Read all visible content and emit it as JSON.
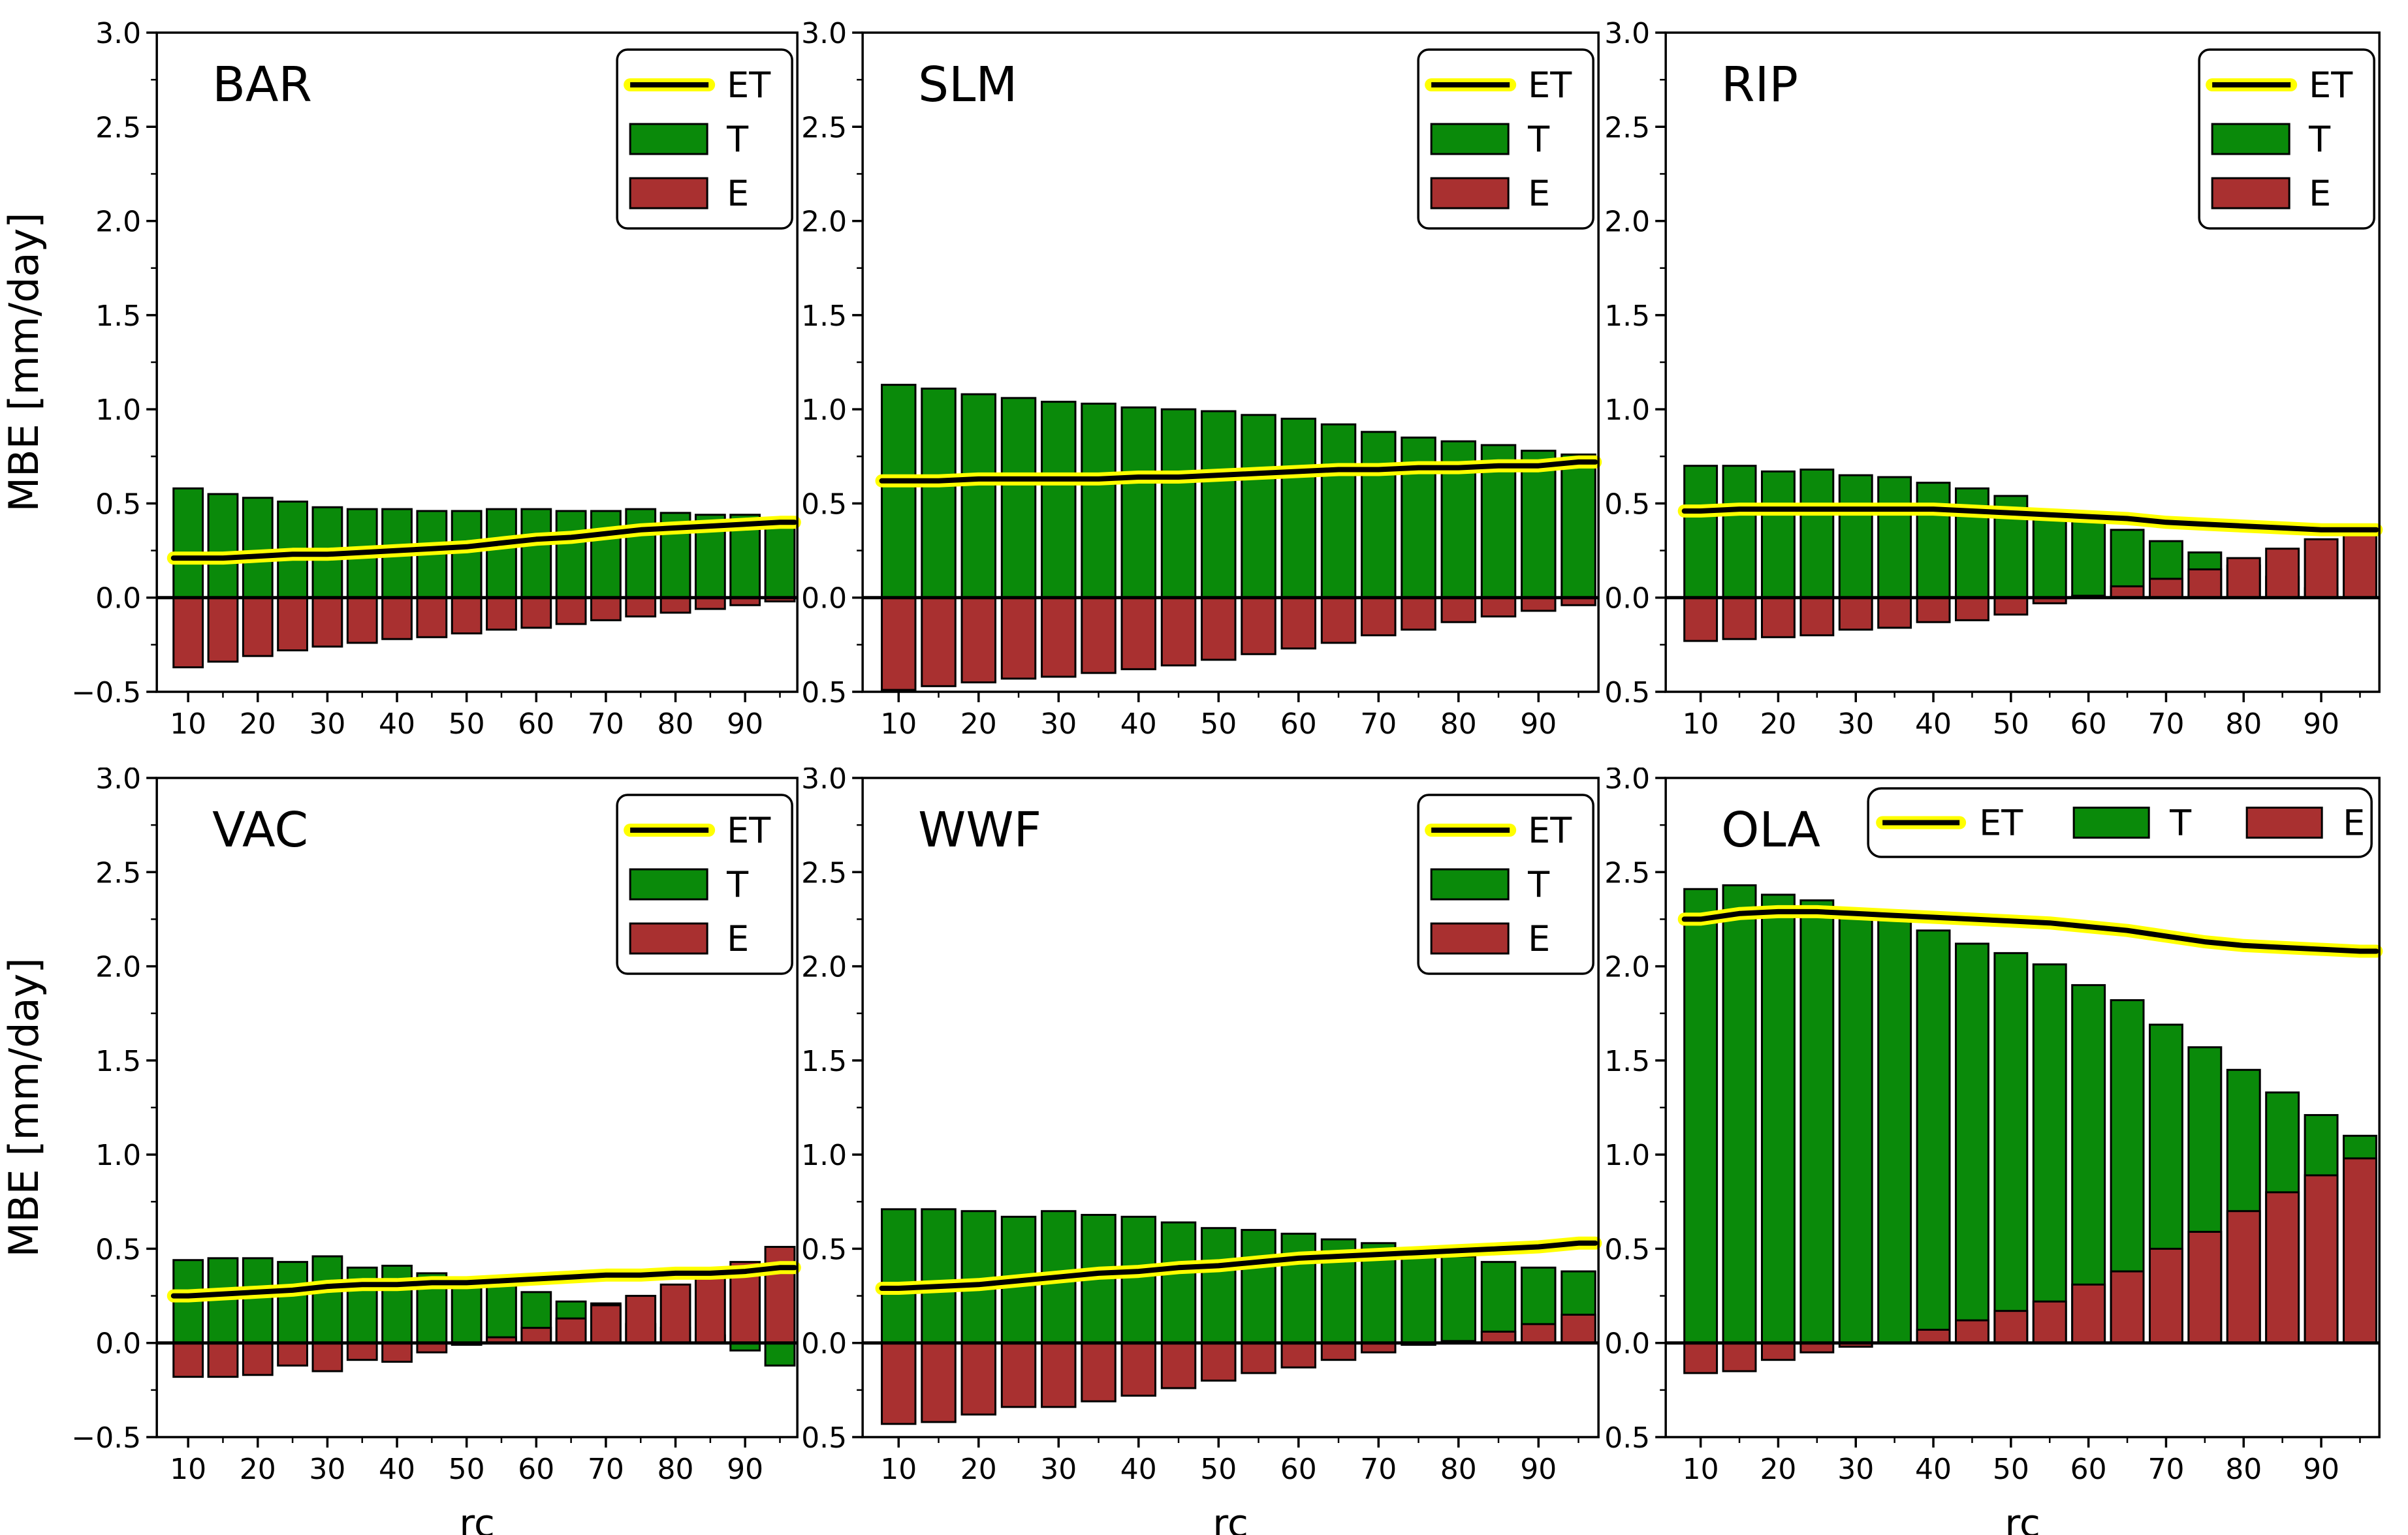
{
  "figure": {
    "ylabel": "MBE [mm/day]",
    "xlabel": "rc",
    "colors": {
      "T": "#0a8a0a",
      "E": "#a93030",
      "ET_outline": "#ffff00",
      "ET_core": "#000000",
      "axis": "#000000",
      "background": "#ffffff"
    },
    "legend_labels": {
      "ET": "ET",
      "T": "T",
      "E": "E"
    }
  },
  "chart_data": [
    {
      "type": "bar",
      "title": "BAR",
      "legend_position": "upper-right-vertical",
      "xlabel": "",
      "ylabel": "MBE [mm/day]",
      "ylim": [
        -0.5,
        3.0
      ],
      "yticks": [
        -0.5,
        0.0,
        0.5,
        1.0,
        1.5,
        2.0,
        2.5,
        3.0
      ],
      "xticks": [
        10,
        20,
        30,
        40,
        50,
        60,
        70,
        80,
        90
      ],
      "x": [
        10,
        15,
        20,
        25,
        30,
        35,
        40,
        45,
        50,
        55,
        60,
        65,
        70,
        75,
        80,
        85,
        90,
        95
      ],
      "series": [
        {
          "name": "T",
          "type": "bar",
          "values": [
            0.58,
            0.55,
            0.53,
            0.51,
            0.48,
            0.47,
            0.47,
            0.46,
            0.46,
            0.47,
            0.47,
            0.46,
            0.46,
            0.47,
            0.45,
            0.44,
            0.44,
            0.42
          ]
        },
        {
          "name": "E",
          "type": "bar",
          "values": [
            -0.37,
            -0.34,
            -0.31,
            -0.28,
            -0.26,
            -0.24,
            -0.22,
            -0.21,
            -0.19,
            -0.17,
            -0.16,
            -0.14,
            -0.12,
            -0.1,
            -0.08,
            -0.06,
            -0.04,
            -0.02
          ]
        },
        {
          "name": "ET",
          "type": "line",
          "values": [
            0.21,
            0.21,
            0.22,
            0.23,
            0.23,
            0.24,
            0.25,
            0.26,
            0.27,
            0.29,
            0.31,
            0.32,
            0.34,
            0.36,
            0.37,
            0.38,
            0.39,
            0.4
          ]
        }
      ]
    },
    {
      "type": "bar",
      "title": "SLM",
      "legend_position": "upper-right-vertical",
      "xlabel": "",
      "ylabel": "",
      "ylim": [
        -0.5,
        3.0
      ],
      "yticks": [
        -0.5,
        0.0,
        0.5,
        1.0,
        1.5,
        2.0,
        2.5,
        3.0
      ],
      "xticks": [
        10,
        20,
        30,
        40,
        50,
        60,
        70,
        80,
        90
      ],
      "x": [
        10,
        15,
        20,
        25,
        30,
        35,
        40,
        45,
        50,
        55,
        60,
        65,
        70,
        75,
        80,
        85,
        90,
        95
      ],
      "series": [
        {
          "name": "T",
          "type": "bar",
          "values": [
            1.13,
            1.11,
            1.08,
            1.06,
            1.04,
            1.03,
            1.01,
            1.0,
            0.99,
            0.97,
            0.95,
            0.92,
            0.88,
            0.85,
            0.83,
            0.81,
            0.78,
            0.76
          ]
        },
        {
          "name": "E",
          "type": "bar",
          "values": [
            -0.49,
            -0.47,
            -0.45,
            -0.43,
            -0.42,
            -0.4,
            -0.38,
            -0.36,
            -0.33,
            -0.3,
            -0.27,
            -0.24,
            -0.2,
            -0.17,
            -0.13,
            -0.1,
            -0.07,
            -0.04
          ]
        },
        {
          "name": "ET",
          "type": "line",
          "values": [
            0.62,
            0.62,
            0.63,
            0.63,
            0.63,
            0.63,
            0.64,
            0.64,
            0.65,
            0.66,
            0.67,
            0.68,
            0.68,
            0.69,
            0.69,
            0.7,
            0.7,
            0.72
          ]
        }
      ]
    },
    {
      "type": "bar",
      "title": "RIP",
      "legend_position": "upper-right-vertical",
      "xlabel": "",
      "ylabel": "",
      "ylim": [
        -0.5,
        3.0
      ],
      "yticks": [
        -0.5,
        0.0,
        0.5,
        1.0,
        1.5,
        2.0,
        2.5,
        3.0
      ],
      "xticks": [
        10,
        20,
        30,
        40,
        50,
        60,
        70,
        80,
        90
      ],
      "x": [
        10,
        15,
        20,
        25,
        30,
        35,
        40,
        45,
        50,
        55,
        60,
        65,
        70,
        75,
        80,
        85,
        90,
        95
      ],
      "series": [
        {
          "name": "T",
          "type": "bar",
          "values": [
            0.7,
            0.7,
            0.67,
            0.68,
            0.65,
            0.64,
            0.61,
            0.58,
            0.54,
            0.46,
            0.41,
            0.36,
            0.3,
            0.24,
            0.17,
            0.11,
            0.05,
            0.01
          ]
        },
        {
          "name": "E",
          "type": "bar",
          "values": [
            -0.23,
            -0.22,
            -0.21,
            -0.2,
            -0.17,
            -0.16,
            -0.13,
            -0.12,
            -0.09,
            -0.03,
            0.01,
            0.06,
            0.1,
            0.15,
            0.21,
            0.26,
            0.31,
            0.36
          ]
        },
        {
          "name": "ET",
          "type": "line",
          "values": [
            0.46,
            0.47,
            0.47,
            0.47,
            0.47,
            0.47,
            0.47,
            0.46,
            0.45,
            0.44,
            0.43,
            0.42,
            0.4,
            0.39,
            0.38,
            0.37,
            0.36,
            0.36
          ]
        }
      ]
    },
    {
      "type": "bar",
      "title": "VAC",
      "legend_position": "upper-right-vertical",
      "xlabel": "rc",
      "ylabel": "MBE [mm/day]",
      "ylim": [
        -0.5,
        3.0
      ],
      "yticks": [
        -0.5,
        0.0,
        0.5,
        1.0,
        1.5,
        2.0,
        2.5,
        3.0
      ],
      "xticks": [
        10,
        20,
        30,
        40,
        50,
        60,
        70,
        80,
        90
      ],
      "x": [
        10,
        15,
        20,
        25,
        30,
        35,
        40,
        45,
        50,
        55,
        60,
        65,
        70,
        75,
        80,
        85,
        90,
        95
      ],
      "series": [
        {
          "name": "T",
          "type": "bar",
          "values": [
            0.44,
            0.45,
            0.45,
            0.43,
            0.46,
            0.4,
            0.41,
            0.37,
            0.32,
            0.31,
            0.27,
            0.22,
            0.21,
            0.1,
            0.08,
            0.04,
            -0.04,
            -0.12
          ]
        },
        {
          "name": "E",
          "type": "bar",
          "values": [
            -0.18,
            -0.18,
            -0.17,
            -0.12,
            -0.15,
            -0.09,
            -0.1,
            -0.05,
            -0.01,
            0.03,
            0.08,
            0.13,
            0.2,
            0.25,
            0.31,
            0.35,
            0.43,
            0.51
          ]
        },
        {
          "name": "ET",
          "type": "line",
          "values": [
            0.25,
            0.26,
            0.27,
            0.28,
            0.3,
            0.31,
            0.31,
            0.32,
            0.32,
            0.33,
            0.34,
            0.35,
            0.36,
            0.36,
            0.37,
            0.37,
            0.38,
            0.4
          ]
        }
      ]
    },
    {
      "type": "bar",
      "title": "WWF",
      "legend_position": "upper-right-vertical",
      "xlabel": "rc",
      "ylabel": "",
      "ylim": [
        -0.5,
        3.0
      ],
      "yticks": [
        -0.5,
        0.0,
        0.5,
        1.0,
        1.5,
        2.0,
        2.5,
        3.0
      ],
      "xticks": [
        10,
        20,
        30,
        40,
        50,
        60,
        70,
        80,
        90
      ],
      "x": [
        10,
        15,
        20,
        25,
        30,
        35,
        40,
        45,
        50,
        55,
        60,
        65,
        70,
        75,
        80,
        85,
        90,
        95
      ],
      "series": [
        {
          "name": "T",
          "type": "bar",
          "values": [
            0.71,
            0.71,
            0.7,
            0.67,
            0.7,
            0.68,
            0.67,
            0.64,
            0.61,
            0.6,
            0.58,
            0.55,
            0.53,
            0.48,
            0.46,
            0.43,
            0.4,
            0.38
          ]
        },
        {
          "name": "E",
          "type": "bar",
          "values": [
            -0.43,
            -0.42,
            -0.38,
            -0.34,
            -0.34,
            -0.31,
            -0.28,
            -0.24,
            -0.2,
            -0.16,
            -0.13,
            -0.09,
            -0.05,
            -0.01,
            0.01,
            0.06,
            0.1,
            0.15
          ]
        },
        {
          "name": "ET",
          "type": "line",
          "values": [
            0.29,
            0.3,
            0.31,
            0.33,
            0.35,
            0.37,
            0.38,
            0.4,
            0.41,
            0.43,
            0.45,
            0.46,
            0.47,
            0.48,
            0.49,
            0.5,
            0.51,
            0.53
          ]
        }
      ]
    },
    {
      "type": "bar",
      "title": "OLA",
      "legend_position": "top-horizontal",
      "xlabel": "rc",
      "ylabel": "",
      "ylim": [
        -0.5,
        3.0
      ],
      "yticks": [
        -0.5,
        0.0,
        0.5,
        1.0,
        1.5,
        2.0,
        2.5,
        3.0
      ],
      "xticks": [
        10,
        20,
        30,
        40,
        50,
        60,
        70,
        80,
        90
      ],
      "x": [
        10,
        15,
        20,
        25,
        30,
        35,
        40,
        45,
        50,
        55,
        60,
        65,
        70,
        75,
        80,
        85,
        90,
        95
      ],
      "series": [
        {
          "name": "T",
          "type": "bar",
          "values": [
            2.41,
            2.43,
            2.38,
            2.35,
            2.26,
            2.25,
            2.19,
            2.12,
            2.07,
            2.01,
            1.9,
            1.82,
            1.69,
            1.57,
            1.45,
            1.33,
            1.21,
            1.1
          ]
        },
        {
          "name": "E",
          "type": "bar",
          "values": [
            -0.16,
            -0.15,
            -0.09,
            -0.05,
            -0.02,
            0.0,
            0.07,
            0.12,
            0.17,
            0.22,
            0.31,
            0.38,
            0.5,
            0.59,
            0.7,
            0.8,
            0.89,
            0.98
          ]
        },
        {
          "name": "ET",
          "type": "line",
          "values": [
            2.25,
            2.28,
            2.29,
            2.29,
            2.28,
            2.27,
            2.26,
            2.25,
            2.24,
            2.23,
            2.21,
            2.19,
            2.16,
            2.13,
            2.11,
            2.1,
            2.09,
            2.08
          ]
        }
      ]
    }
  ]
}
